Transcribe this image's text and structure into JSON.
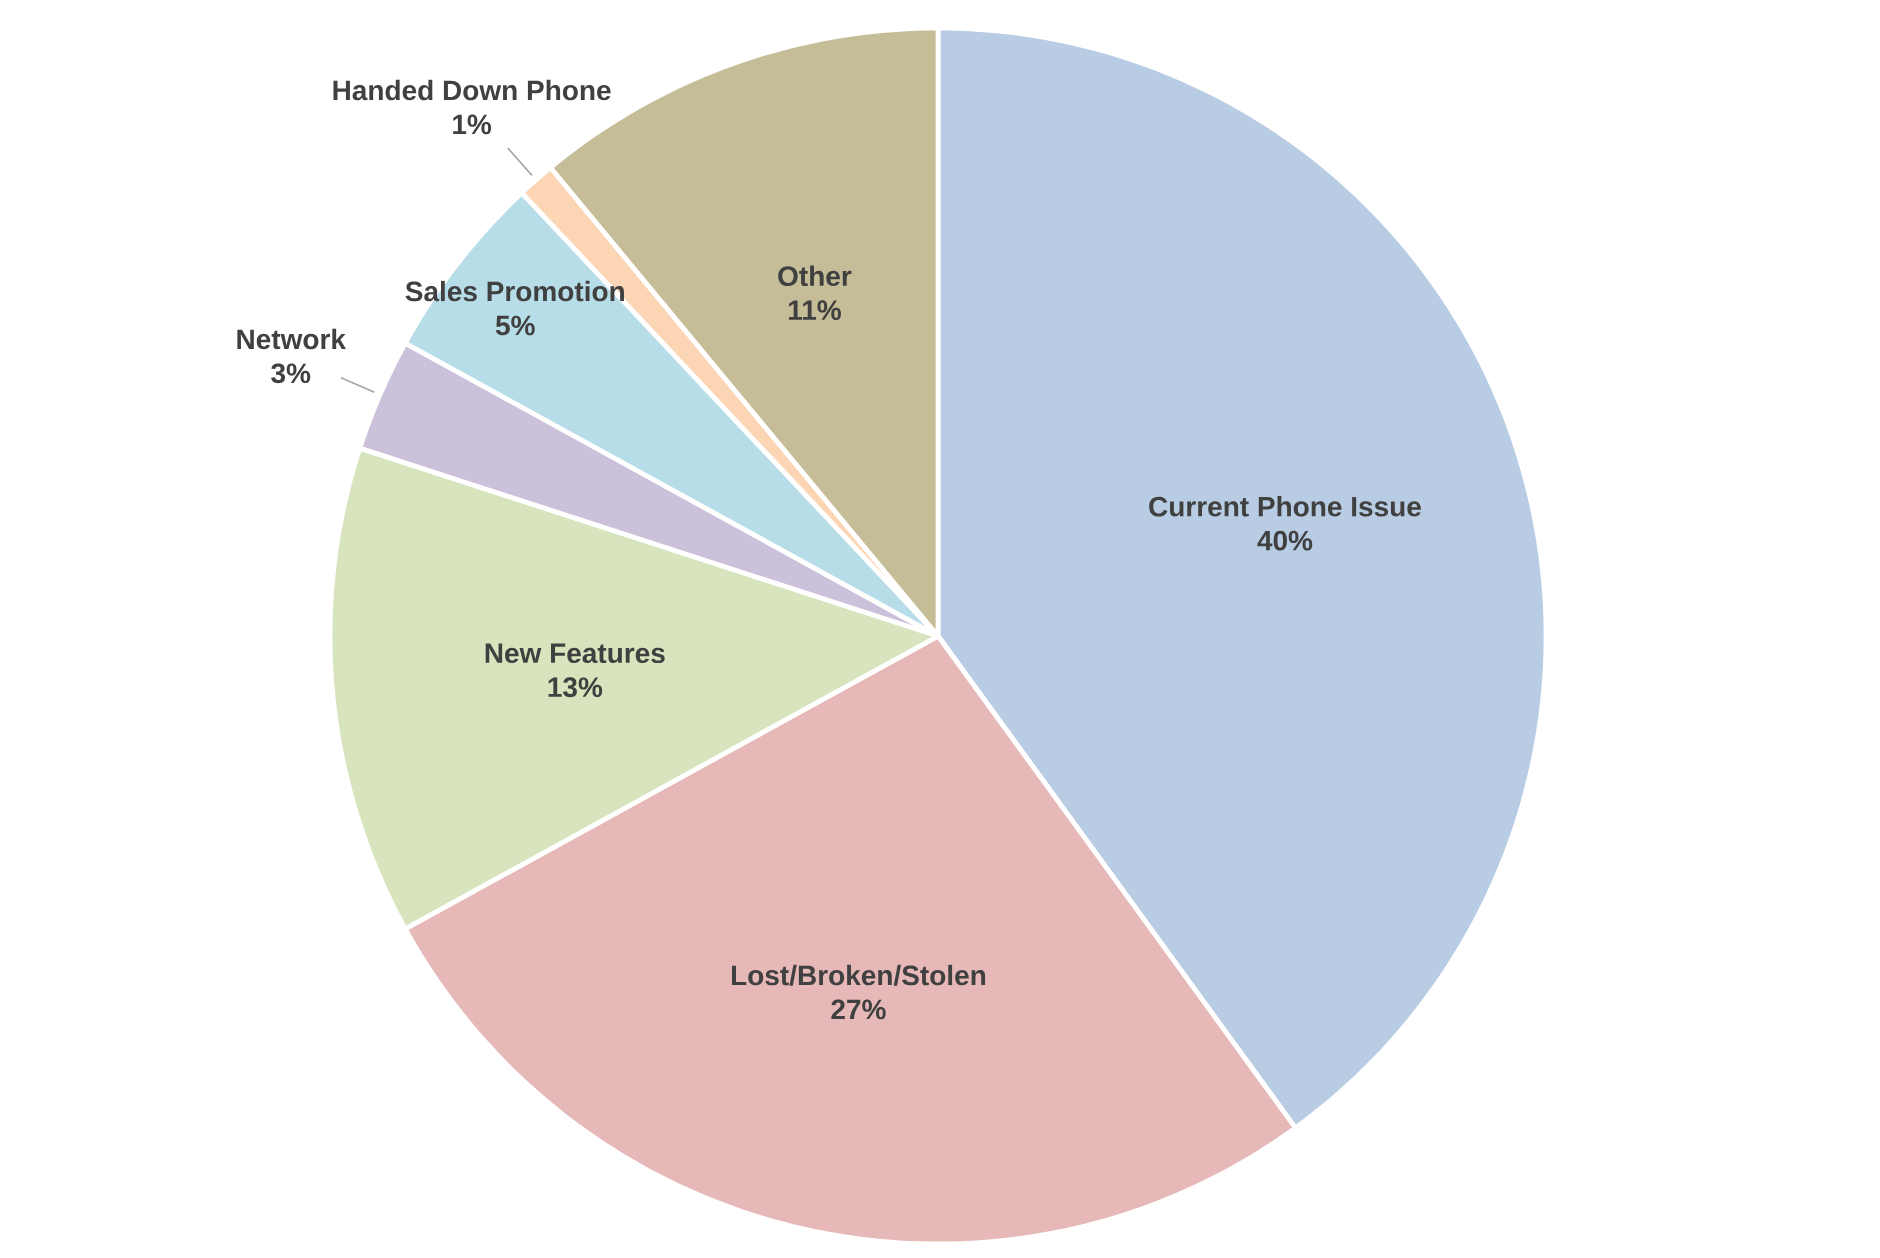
{
  "chart_data": {
    "type": "pie",
    "categories": [
      "Current Phone Issue",
      "Lost/Broken/Stolen",
      "New Features",
      "Network",
      "Sales Promotion",
      "Handed Down Phone",
      "Other"
    ],
    "values": [
      40,
      27,
      13,
      3,
      5,
      1,
      11
    ],
    "value_labels": [
      "40%",
      "27%",
      "13%",
      "3%",
      "5%",
      "1%",
      "11%"
    ],
    "colors": [
      "#b8cce4",
      "#e6b9b8",
      "#d7e4bd",
      "#ccc1da",
      "#b7dee8",
      "#fcd5b5",
      "#c4bd97"
    ]
  }
}
